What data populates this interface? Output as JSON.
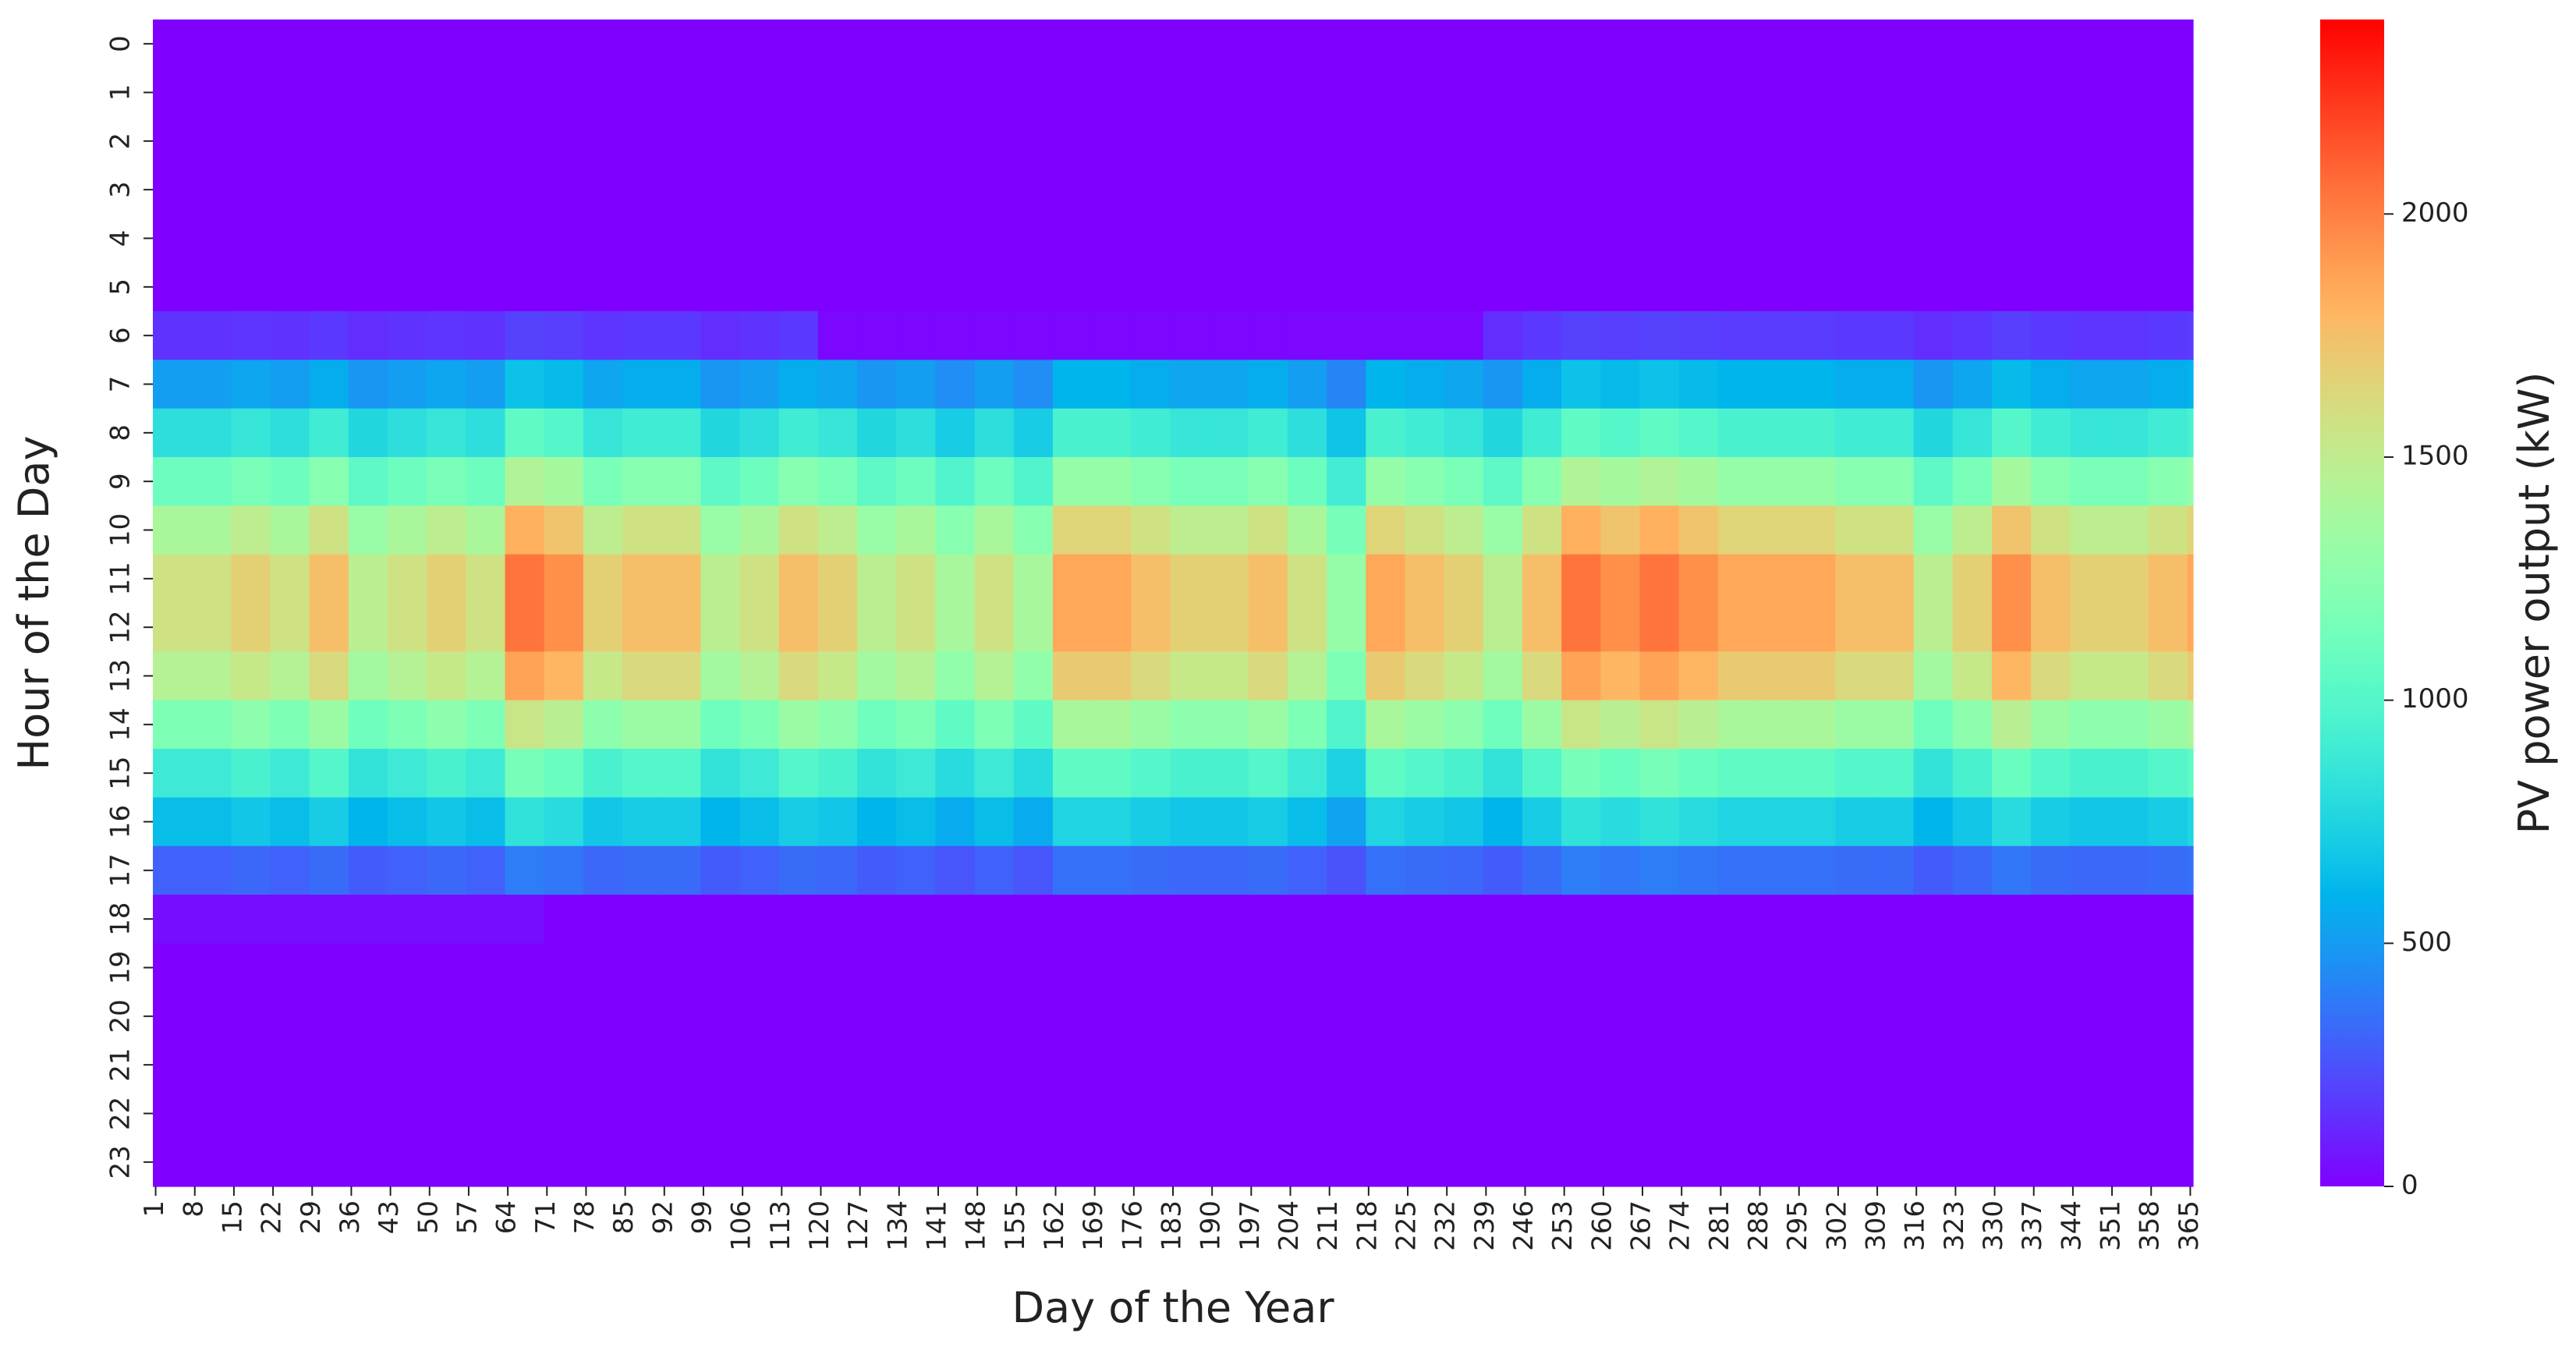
{
  "chart_data": {
    "type": "heatmap",
    "x_label": "Day of the Year",
    "y_label": "Hour of the Day",
    "colorbar_label": "PV power output (kW)",
    "colormap": "rainbow",
    "clim": [
      0,
      2400
    ],
    "cticks": [
      0,
      500,
      1000,
      1500,
      2000
    ],
    "x": [
      1,
      8,
      15,
      22,
      29,
      36,
      43,
      50,
      57,
      64,
      71,
      78,
      85,
      92,
      99,
      106,
      113,
      120,
      127,
      134,
      141,
      148,
      155,
      162,
      169,
      176,
      183,
      190,
      197,
      204,
      211,
      218,
      225,
      232,
      239,
      246,
      253,
      260,
      267,
      274,
      281,
      288,
      295,
      302,
      309,
      316,
      323,
      330,
      337,
      344,
      351,
      358,
      365
    ],
    "y": [
      0,
      1,
      2,
      3,
      4,
      5,
      6,
      7,
      8,
      9,
      10,
      11,
      12,
      13,
      14,
      15,
      16,
      17,
      18,
      19,
      20,
      21,
      22,
      23
    ],
    "values": [
      [
        0,
        0,
        0,
        0,
        0,
        0,
        0,
        0,
        0,
        0,
        0,
        0,
        0,
        0,
        0,
        0,
        0,
        0,
        0,
        0,
        0,
        0,
        0,
        0,
        0,
        0,
        0,
        0,
        0,
        0,
        0,
        0,
        0,
        0,
        0,
        0,
        0,
        0,
        0,
        0,
        0,
        0,
        0,
        0,
        0,
        0,
        0,
        0,
        0,
        0,
        0,
        0,
        0
      ],
      [
        0,
        0,
        0,
        0,
        0,
        0,
        0,
        0,
        0,
        0,
        0,
        0,
        0,
        0,
        0,
        0,
        0,
        0,
        0,
        0,
        0,
        0,
        0,
        0,
        0,
        0,
        0,
        0,
        0,
        0,
        0,
        0,
        0,
        0,
        0,
        0,
        0,
        0,
        0,
        0,
        0,
        0,
        0,
        0,
        0,
        0,
        0,
        0,
        0,
        0,
        0,
        0,
        0
      ],
      [
        0,
        0,
        0,
        0,
        0,
        0,
        0,
        0,
        0,
        0,
        0,
        0,
        0,
        0,
        0,
        0,
        0,
        0,
        0,
        0,
        0,
        0,
        0,
        0,
        0,
        0,
        0,
        0,
        0,
        0,
        0,
        0,
        0,
        0,
        0,
        0,
        0,
        0,
        0,
        0,
        0,
        0,
        0,
        0,
        0,
        0,
        0,
        0,
        0,
        0,
        0,
        0,
        0
      ],
      [
        0,
        0,
        0,
        0,
        0,
        0,
        0,
        0,
        0,
        0,
        0,
        0,
        0,
        0,
        0,
        0,
        0,
        0,
        0,
        0,
        0,
        0,
        0,
        0,
        0,
        0,
        0,
        0,
        0,
        0,
        0,
        0,
        0,
        0,
        0,
        0,
        0,
        0,
        0,
        0,
        0,
        0,
        0,
        0,
        0,
        0,
        0,
        0,
        0,
        0,
        0,
        0,
        0
      ],
      [
        0,
        0,
        0,
        0,
        0,
        0,
        0,
        0,
        0,
        0,
        0,
        0,
        0,
        0,
        0,
        0,
        0,
        0,
        0,
        0,
        0,
        0,
        0,
        0,
        0,
        0,
        0,
        0,
        0,
        0,
        0,
        0,
        0,
        0,
        0,
        0,
        0,
        0,
        0,
        0,
        0,
        0,
        0,
        0,
        0,
        0,
        0,
        0,
        0,
        0,
        0,
        0,
        0
      ],
      [
        0,
        0,
        0,
        0,
        0,
        0,
        0,
        0,
        0,
        0,
        0,
        0,
        0,
        0,
        0,
        0,
        0,
        0,
        0,
        0,
        0,
        0,
        0,
        0,
        0,
        0,
        0,
        0,
        0,
        0,
        0,
        0,
        0,
        0,
        0,
        0,
        0,
        0,
        0,
        0,
        0,
        0,
        0,
        0,
        0,
        0,
        0,
        0,
        0,
        0,
        0,
        0,
        0
      ],
      [
        150,
        150,
        160,
        150,
        170,
        140,
        150,
        160,
        150,
        200,
        190,
        160,
        170,
        170,
        140,
        150,
        170,
        20,
        20,
        20,
        20,
        20,
        20,
        20,
        20,
        20,
        20,
        20,
        20,
        20,
        20,
        20,
        20,
        20,
        140,
        170,
        200,
        190,
        200,
        190,
        180,
        180,
        180,
        170,
        170,
        140,
        160,
        190,
        170,
        160,
        160,
        170,
        180
      ],
      [
        510,
        510,
        540,
        510,
        570,
        480,
        510,
        540,
        510,
        660,
        630,
        540,
        570,
        570,
        480,
        510,
        570,
        540,
        480,
        510,
        450,
        510,
        450,
        600,
        600,
        570,
        540,
        540,
        570,
        510,
        420,
        600,
        570,
        540,
        480,
        570,
        660,
        630,
        660,
        630,
        600,
        600,
        600,
        570,
        570,
        480,
        540,
        630,
        570,
        540,
        540,
        570,
        600
      ],
      [
        810,
        810,
        860,
        810,
        900,
        760,
        810,
        860,
        810,
        1050,
        1000,
        860,
        900,
        900,
        760,
        810,
        900,
        860,
        760,
        810,
        710,
        810,
        710,
        950,
        950,
        900,
        860,
        860,
        900,
        810,
        670,
        950,
        900,
        860,
        760,
        900,
        1050,
        1000,
        1050,
        1000,
        950,
        950,
        950,
        900,
        900,
        760,
        860,
        1000,
        900,
        860,
        860,
        900,
        950
      ],
      [
        1110,
        1110,
        1170,
        1110,
        1240,
        1040,
        1110,
        1170,
        1110,
        1430,
        1370,
        1170,
        1240,
        1240,
        1040,
        1110,
        1240,
        1170,
        1040,
        1110,
        980,
        1110,
        980,
        1300,
        1300,
        1240,
        1170,
        1170,
        1240,
        1110,
        910,
        1300,
        1240,
        1170,
        1040,
        1240,
        1430,
        1370,
        1430,
        1370,
        1300,
        1300,
        1300,
        1240,
        1240,
        1040,
        1170,
        1370,
        1240,
        1170,
        1170,
        1240,
        1300
      ],
      [
        1400,
        1400,
        1490,
        1400,
        1570,
        1320,
        1400,
        1490,
        1400,
        1820,
        1730,
        1490,
        1570,
        1570,
        1320,
        1400,
        1570,
        1490,
        1320,
        1400,
        1240,
        1400,
        1240,
        1650,
        1650,
        1570,
        1490,
        1490,
        1570,
        1400,
        1160,
        1650,
        1570,
        1490,
        1320,
        1570,
        1820,
        1730,
        1820,
        1730,
        1650,
        1650,
        1650,
        1570,
        1570,
        1320,
        1490,
        1730,
        1570,
        1490,
        1490,
        1570,
        1650
      ],
      [
        1570,
        1570,
        1670,
        1570,
        1760,
        1480,
        1570,
        1670,
        1570,
        2040,
        1940,
        1670,
        1760,
        1760,
        1480,
        1570,
        1760,
        1670,
        1480,
        1570,
        1390,
        1570,
        1390,
        1850,
        1850,
        1760,
        1670,
        1670,
        1760,
        1570,
        1300,
        1850,
        1760,
        1670,
        1480,
        1760,
        2040,
        1940,
        2040,
        1940,
        1850,
        1850,
        1850,
        1760,
        1760,
        1480,
        1670,
        1940,
        1760,
        1670,
        1670,
        1760,
        1850
      ],
      [
        1570,
        1570,
        1670,
        1570,
        1760,
        1480,
        1570,
        1670,
        1570,
        2040,
        1940,
        1670,
        1760,
        1760,
        1480,
        1570,
        1760,
        1670,
        1480,
        1570,
        1390,
        1570,
        1390,
        1850,
        1850,
        1760,
        1670,
        1670,
        1760,
        1570,
        1300,
        1850,
        1760,
        1670,
        1480,
        1760,
        2040,
        1940,
        2040,
        1940,
        1850,
        1850,
        1850,
        1760,
        1760,
        1480,
        1670,
        1940,
        1760,
        1670,
        1670,
        1760,
        1850
      ],
      [
        1450,
        1450,
        1530,
        1450,
        1620,
        1360,
        1450,
        1530,
        1450,
        1870,
        1790,
        1530,
        1620,
        1620,
        1360,
        1450,
        1620,
        1530,
        1360,
        1450,
        1280,
        1450,
        1280,
        1700,
        1700,
        1620,
        1530,
        1530,
        1620,
        1450,
        1190,
        1700,
        1620,
        1530,
        1360,
        1620,
        1870,
        1790,
        1870,
        1790,
        1700,
        1700,
        1700,
        1620,
        1620,
        1360,
        1530,
        1790,
        1620,
        1530,
        1530,
        1620,
        1700
      ],
      [
        1190,
        1190,
        1260,
        1190,
        1330,
        1120,
        1190,
        1260,
        1190,
        1540,
        1470,
        1260,
        1330,
        1330,
        1120,
        1190,
        1330,
        1260,
        1120,
        1190,
        1050,
        1190,
        1050,
        1400,
        1400,
        1330,
        1260,
        1260,
        1330,
        1190,
        980,
        1400,
        1330,
        1260,
        1120,
        1330,
        1540,
        1470,
        1540,
        1470,
        1400,
        1400,
        1400,
        1330,
        1330,
        1120,
        1260,
        1470,
        1330,
        1260,
        1260,
        1330,
        1400
      ],
      [
        890,
        890,
        950,
        890,
        1000,
        840,
        890,
        950,
        890,
        1160,
        1100,
        950,
        1000,
        1000,
        840,
        890,
        1000,
        950,
        840,
        890,
        790,
        890,
        790,
        1050,
        1050,
        1000,
        950,
        950,
        1000,
        890,
        740,
        1050,
        1000,
        950,
        840,
        1000,
        1160,
        1100,
        1160,
        1100,
        1050,
        1050,
        1050,
        1000,
        1000,
        840,
        950,
        1100,
        1000,
        950,
        950,
        1000,
        1050
      ],
      [
        640,
        640,
        680,
        640,
        710,
        600,
        640,
        680,
        640,
        830,
        790,
        680,
        710,
        710,
        600,
        640,
        710,
        680,
        600,
        640,
        560,
        640,
        560,
        750,
        750,
        710,
        680,
        680,
        710,
        640,
        530,
        750,
        710,
        680,
        600,
        710,
        830,
        790,
        830,
        790,
        750,
        750,
        750,
        710,
        710,
        600,
        680,
        790,
        710,
        680,
        680,
        710,
        750
      ],
      [
        300,
        300,
        320,
        300,
        330,
        280,
        300,
        320,
        300,
        390,
        370,
        320,
        330,
        330,
        280,
        300,
        330,
        320,
        280,
        300,
        260,
        300,
        260,
        350,
        350,
        330,
        320,
        320,
        330,
        300,
        250,
        350,
        330,
        320,
        280,
        330,
        390,
        370,
        390,
        370,
        350,
        350,
        350,
        330,
        330,
        280,
        320,
        370,
        330,
        320,
        320,
        330,
        350
      ],
      [
        40,
        40,
        40,
        40,
        40,
        40,
        40,
        40,
        40,
        40,
        0,
        0,
        0,
        0,
        0,
        0,
        0,
        0,
        0,
        0,
        0,
        0,
        0,
        0,
        0,
        0,
        0,
        0,
        0,
        0,
        0,
        0,
        0,
        0,
        0,
        0,
        0,
        0,
        0,
        0,
        0,
        0,
        0,
        0,
        0,
        0,
        0,
        0,
        0,
        0,
        0,
        0,
        0
      ],
      [
        0,
        0,
        0,
        0,
        0,
        0,
        0,
        0,
        0,
        0,
        0,
        0,
        0,
        0,
        0,
        0,
        0,
        0,
        0,
        0,
        0,
        0,
        0,
        0,
        0,
        0,
        0,
        0,
        0,
        0,
        0,
        0,
        0,
        0,
        0,
        0,
        0,
        0,
        0,
        0,
        0,
        0,
        0,
        0,
        0,
        0,
        0,
        0,
        0,
        0,
        0,
        0,
        0
      ],
      [
        0,
        0,
        0,
        0,
        0,
        0,
        0,
        0,
        0,
        0,
        0,
        0,
        0,
        0,
        0,
        0,
        0,
        0,
        0,
        0,
        0,
        0,
        0,
        0,
        0,
        0,
        0,
        0,
        0,
        0,
        0,
        0,
        0,
        0,
        0,
        0,
        0,
        0,
        0,
        0,
        0,
        0,
        0,
        0,
        0,
        0,
        0,
        0,
        0,
        0,
        0,
        0,
        0
      ],
      [
        0,
        0,
        0,
        0,
        0,
        0,
        0,
        0,
        0,
        0,
        0,
        0,
        0,
        0,
        0,
        0,
        0,
        0,
        0,
        0,
        0,
        0,
        0,
        0,
        0,
        0,
        0,
        0,
        0,
        0,
        0,
        0,
        0,
        0,
        0,
        0,
        0,
        0,
        0,
        0,
        0,
        0,
        0,
        0,
        0,
        0,
        0,
        0,
        0,
        0,
        0,
        0,
        0
      ],
      [
        0,
        0,
        0,
        0,
        0,
        0,
        0,
        0,
        0,
        0,
        0,
        0,
        0,
        0,
        0,
        0,
        0,
        0,
        0,
        0,
        0,
        0,
        0,
        0,
        0,
        0,
        0,
        0,
        0,
        0,
        0,
        0,
        0,
        0,
        0,
        0,
        0,
        0,
        0,
        0,
        0,
        0,
        0,
        0,
        0,
        0,
        0,
        0,
        0,
        0,
        0,
        0,
        0
      ],
      [
        0,
        0,
        0,
        0,
        0,
        0,
        0,
        0,
        0,
        0,
        0,
        0,
        0,
        0,
        0,
        0,
        0,
        0,
        0,
        0,
        0,
        0,
        0,
        0,
        0,
        0,
        0,
        0,
        0,
        0,
        0,
        0,
        0,
        0,
        0,
        0,
        0,
        0,
        0,
        0,
        0,
        0,
        0,
        0,
        0,
        0,
        0,
        0,
        0,
        0,
        0,
        0,
        0
      ]
    ]
  }
}
